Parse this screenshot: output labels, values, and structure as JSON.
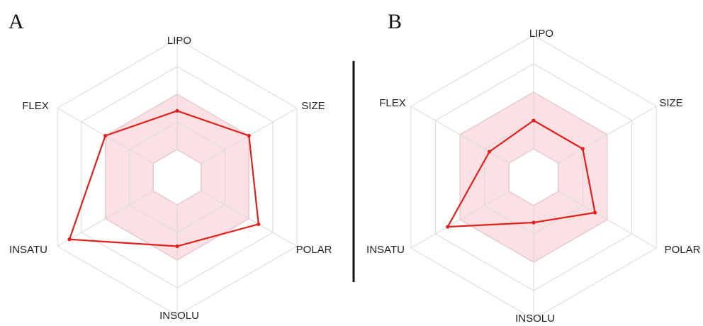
{
  "figure": {
    "panels": [
      "A",
      "B"
    ],
    "colors": {
      "grid": "#d9d9d9",
      "optimal_fill": "#f7c6cd",
      "optimal_stroke": "#f08c9a",
      "series": "#e0201c",
      "divider": "#111111"
    }
  },
  "chart_data": [
    {
      "type": "radar",
      "panel_label": "A",
      "axes": [
        "LIPO",
        "SIZE",
        "POLAR",
        "INSOLU",
        "INSATU",
        "FLEX"
      ],
      "rings": 5,
      "range": [
        0,
        5
      ],
      "optimal_range": {
        "inner": 1,
        "outer": 3
      },
      "series": [
        {
          "name": "",
          "values": [
            2.4,
            3.0,
            3.4,
            2.5,
            4.5,
            3.0
          ]
        }
      ]
    },
    {
      "type": "radar",
      "panel_label": "B",
      "axes": [
        "LIPO",
        "SIZE",
        "POLAR",
        "INSOLU",
        "INSATU",
        "FLEX"
      ],
      "rings": 5,
      "range": [
        0,
        5
      ],
      "optimal_range": {
        "inner": 1,
        "outer": 3
      },
      "series": [
        {
          "name": "",
          "values": [
            2.0,
            2.0,
            2.5,
            1.6,
            3.5,
            1.8
          ]
        }
      ]
    }
  ]
}
